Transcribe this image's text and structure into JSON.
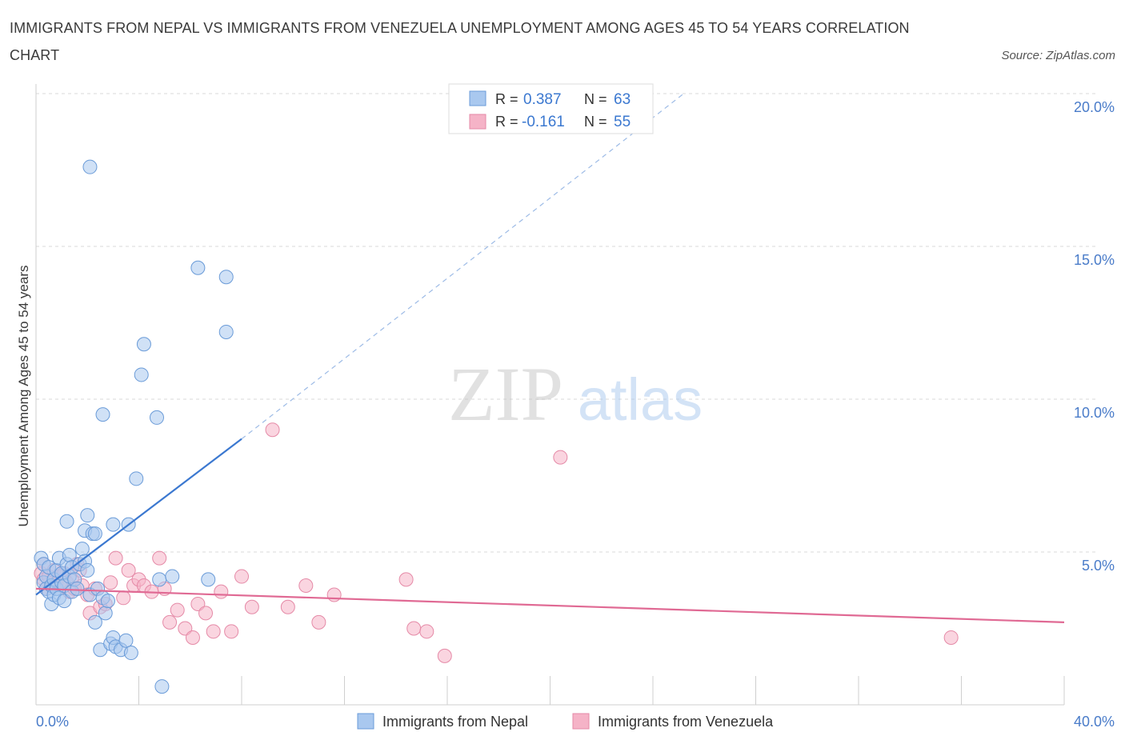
{
  "header": {
    "title": "IMMIGRANTS FROM NEPAL VS IMMIGRANTS FROM VENEZUELA UNEMPLOYMENT AMONG AGES 45 TO 54 YEARS CORRELATION CHART",
    "source": "Source: ZipAtlas.com"
  },
  "watermark": {
    "zip": "ZIP",
    "atlas": "atlas"
  },
  "colors": {
    "nepal_fill": "#a9c8ef",
    "nepal_stroke": "#6a9bd8",
    "nepal_line": "#3b78d0",
    "venezuela_fill": "#f5b3c7",
    "venezuela_stroke": "#e58aa7",
    "venezuela_line": "#e06a94",
    "tick_label": "#4a7cc9",
    "grid": "#d8d8d8"
  },
  "legend": {
    "rows": [
      {
        "r_label": "R = ",
        "r_value": "0.387",
        "n_label": "N = ",
        "n_value": "63"
      },
      {
        "r_label": "R = ",
        "r_value": "-0.161",
        "n_label": "N = ",
        "n_value": "55"
      }
    ]
  },
  "chart_data": {
    "type": "scatter",
    "title": "IMMIGRANTS FROM NEPAL VS IMMIGRANTS FROM VENEZUELA UNEMPLOYMENT AMONG AGES 45 TO 54 YEARS CORRELATION CHART",
    "xlabel": "",
    "ylabel": "Unemployment Among Ages 45 to 54 years",
    "xlim": [
      0,
      40
    ],
    "ylim": [
      0,
      20
    ],
    "x_tick_labels": [
      {
        "value": 0,
        "label": "0.0%"
      },
      {
        "value": 40,
        "label": "40.0%"
      }
    ],
    "y_tick_labels": [
      {
        "value": 5,
        "label": "5.0%"
      },
      {
        "value": 10,
        "label": "10.0%"
      },
      {
        "value": 15,
        "label": "15.0%"
      },
      {
        "value": 20,
        "label": "20.0%"
      }
    ],
    "x_ticks": [
      0,
      4,
      8,
      12,
      16,
      20,
      24,
      28,
      32,
      36,
      40
    ],
    "grid": true,
    "series": [
      {
        "name": "Immigrants from Nepal",
        "r": 0.387,
        "n": 63,
        "trend": {
          "x0": 0,
          "y0": 3.6,
          "x1": 8,
          "y1": 8.7,
          "dash_to_x": 25.2,
          "dash_to_y": 20.0
        },
        "points": [
          [
            0.2,
            4.8
          ],
          [
            0.3,
            4.6
          ],
          [
            0.3,
            4.0
          ],
          [
            0.4,
            3.8
          ],
          [
            0.4,
            4.2
          ],
          [
            0.5,
            3.7
          ],
          [
            0.5,
            4.5
          ],
          [
            0.6,
            3.9
          ],
          [
            0.6,
            3.3
          ],
          [
            0.7,
            4.1
          ],
          [
            0.7,
            3.6
          ],
          [
            0.8,
            4.4
          ],
          [
            0.8,
            3.8
          ],
          [
            0.9,
            4.8
          ],
          [
            0.9,
            3.5
          ],
          [
            1.0,
            4.0
          ],
          [
            1.0,
            4.3
          ],
          [
            1.1,
            3.9
          ],
          [
            1.1,
            3.4
          ],
          [
            1.2,
            4.6
          ],
          [
            1.2,
            6.0
          ],
          [
            1.3,
            4.2
          ],
          [
            1.3,
            4.9
          ],
          [
            1.4,
            3.7
          ],
          [
            1.4,
            4.5
          ],
          [
            1.5,
            4.1
          ],
          [
            1.6,
            3.8
          ],
          [
            1.7,
            4.6
          ],
          [
            1.8,
            5.1
          ],
          [
            1.9,
            5.7
          ],
          [
            1.9,
            4.7
          ],
          [
            2.0,
            6.2
          ],
          [
            2.0,
            4.4
          ],
          [
            2.1,
            3.6
          ],
          [
            2.2,
            5.6
          ],
          [
            2.3,
            2.7
          ],
          [
            2.3,
            5.6
          ],
          [
            2.4,
            3.8
          ],
          [
            2.5,
            1.8
          ],
          [
            2.6,
            3.5
          ],
          [
            2.7,
            3.0
          ],
          [
            2.8,
            3.4
          ],
          [
            2.9,
            2.0
          ],
          [
            3.0,
            5.9
          ],
          [
            3.0,
            2.2
          ],
          [
            3.1,
            1.9
          ],
          [
            3.3,
            1.8
          ],
          [
            3.5,
            2.1
          ],
          [
            3.6,
            5.9
          ],
          [
            3.7,
            1.7
          ],
          [
            2.1,
            17.6
          ],
          [
            2.6,
            9.5
          ],
          [
            3.9,
            7.4
          ],
          [
            4.1,
            10.8
          ],
          [
            4.2,
            11.8
          ],
          [
            4.7,
            9.4
          ],
          [
            4.8,
            4.1
          ],
          [
            4.9,
            0.6
          ],
          [
            5.3,
            4.2
          ],
          [
            6.3,
            14.3
          ],
          [
            6.7,
            4.1
          ],
          [
            7.4,
            14.0
          ],
          [
            7.4,
            12.2
          ]
        ]
      },
      {
        "name": "Immigrants from Venezuela",
        "r": -0.161,
        "n": 55,
        "trend": {
          "x0": 0,
          "y0": 3.8,
          "x1": 40,
          "y1": 2.7
        },
        "points": [
          [
            0.2,
            4.3
          ],
          [
            0.3,
            4.6
          ],
          [
            0.3,
            4.1
          ],
          [
            0.4,
            3.8
          ],
          [
            0.5,
            4.2
          ],
          [
            0.6,
            3.9
          ],
          [
            0.7,
            4.4
          ],
          [
            0.8,
            4.0
          ],
          [
            0.9,
            4.2
          ],
          [
            1.0,
            3.9
          ],
          [
            1.1,
            4.3
          ],
          [
            1.2,
            4.0
          ],
          [
            1.3,
            3.7
          ],
          [
            1.4,
            4.1
          ],
          [
            1.5,
            3.8
          ],
          [
            1.6,
            4.6
          ],
          [
            1.7,
            4.4
          ],
          [
            1.8,
            3.9
          ],
          [
            2.0,
            3.6
          ],
          [
            2.1,
            3.0
          ],
          [
            2.3,
            3.8
          ],
          [
            2.5,
            3.2
          ],
          [
            2.7,
            3.3
          ],
          [
            2.9,
            4.0
          ],
          [
            3.1,
            4.8
          ],
          [
            3.4,
            3.5
          ],
          [
            3.6,
            4.4
          ],
          [
            3.8,
            3.9
          ],
          [
            4.0,
            4.1
          ],
          [
            4.2,
            3.9
          ],
          [
            4.5,
            3.7
          ],
          [
            4.8,
            4.8
          ],
          [
            5.0,
            3.8
          ],
          [
            5.2,
            2.7
          ],
          [
            5.5,
            3.1
          ],
          [
            5.8,
            2.5
          ],
          [
            6.1,
            2.2
          ],
          [
            6.3,
            3.3
          ],
          [
            6.6,
            3.0
          ],
          [
            6.9,
            2.4
          ],
          [
            7.2,
            3.7
          ],
          [
            7.6,
            2.4
          ],
          [
            8.0,
            4.2
          ],
          [
            8.4,
            3.2
          ],
          [
            9.2,
            9.0
          ],
          [
            9.8,
            3.2
          ],
          [
            10.5,
            3.9
          ],
          [
            11.0,
            2.7
          ],
          [
            11.6,
            3.6
          ],
          [
            14.4,
            4.1
          ],
          [
            14.7,
            2.5
          ],
          [
            15.2,
            2.4
          ],
          [
            15.9,
            1.6
          ],
          [
            20.4,
            8.1
          ],
          [
            35.6,
            2.2
          ]
        ]
      }
    ]
  },
  "bottom_legend": {
    "items": [
      {
        "label": "Immigrants from Nepal"
      },
      {
        "label": "Immigrants from Venezuela"
      }
    ]
  }
}
